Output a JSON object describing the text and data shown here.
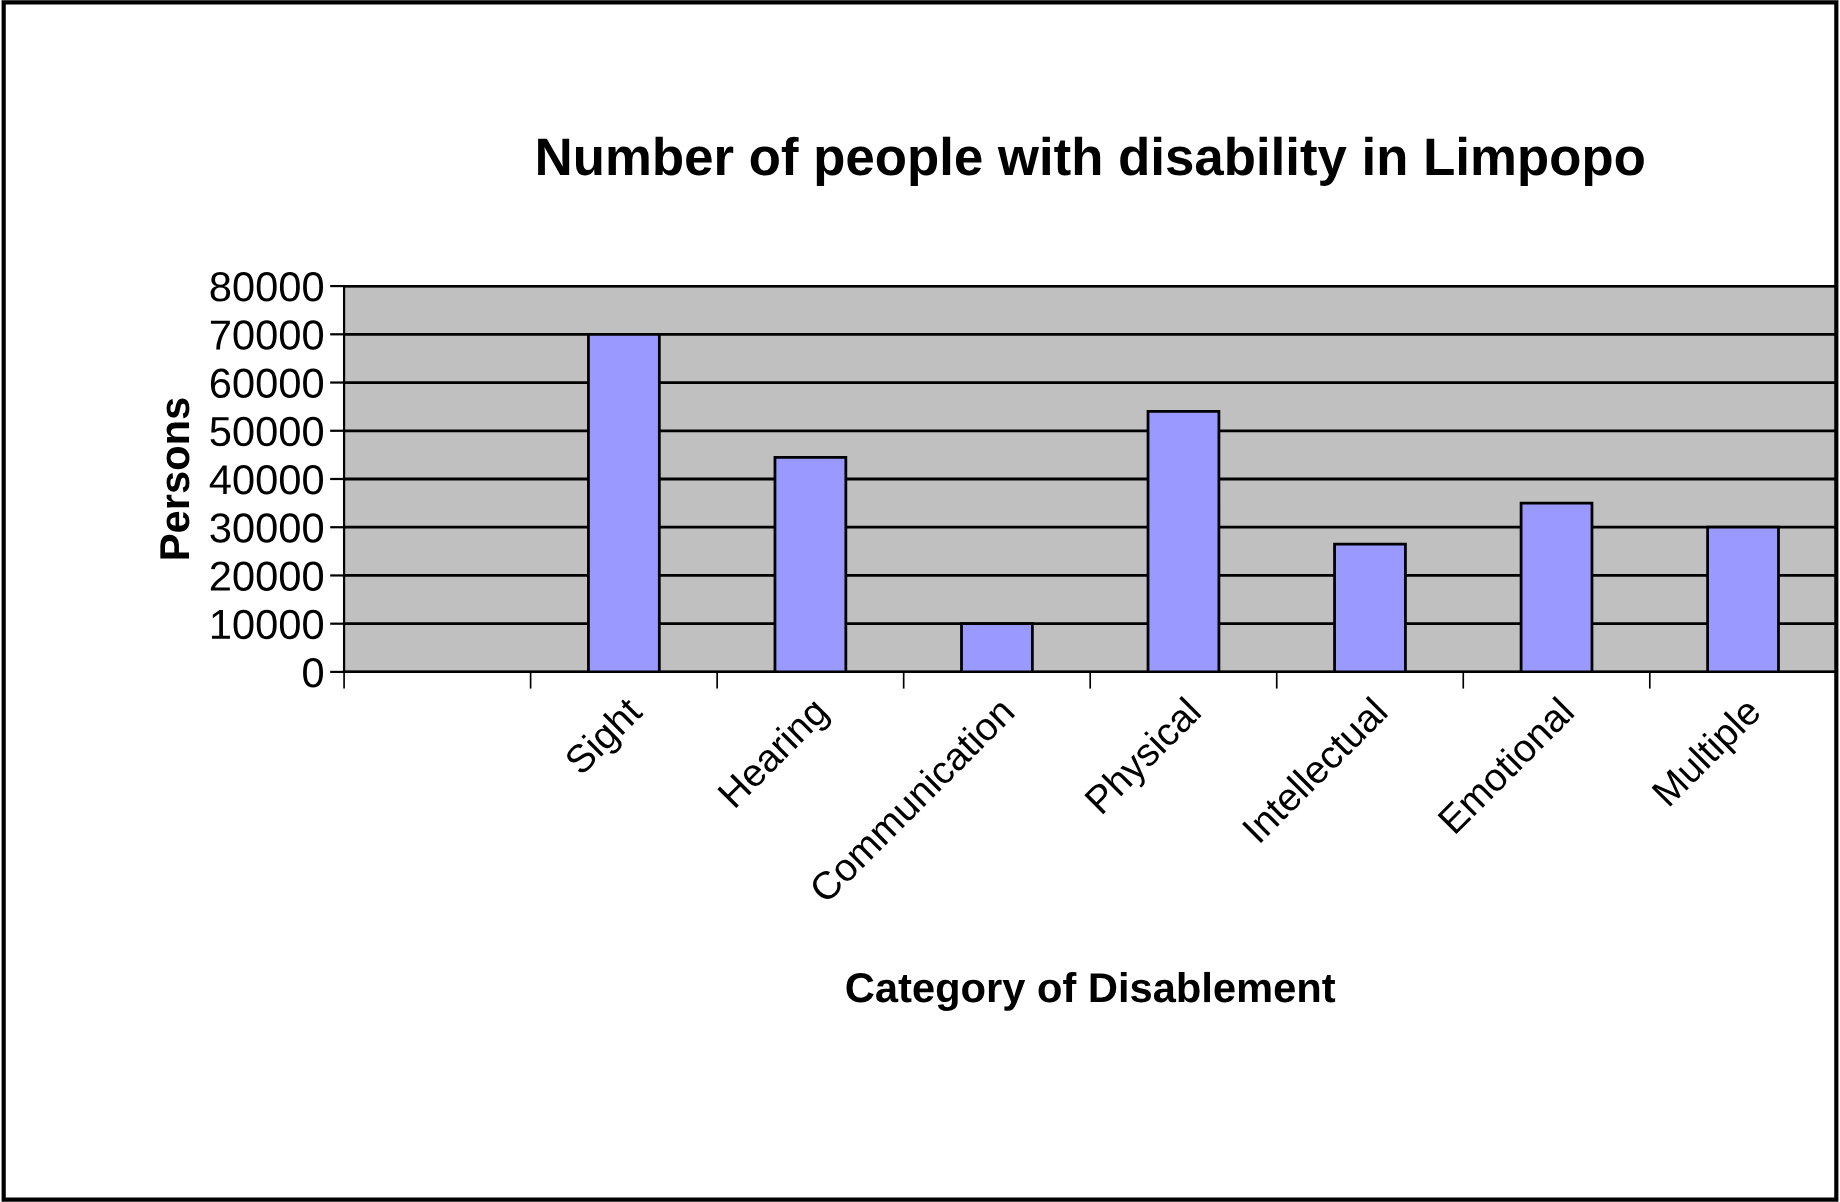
{
  "chart_data": {
    "type": "bar",
    "title": "Number of people with disability in Limpopo",
    "xlabel": "Category of Disablement",
    "ylabel": "Persons",
    "categories": [
      null,
      "Sight",
      "Hearing",
      "Communication",
      "Physical",
      "Intellectual",
      "Emotional",
      "Multiple"
    ],
    "values": [
      null,
      70000,
      44500,
      10000,
      54000,
      26500,
      35000,
      30000
    ],
    "color": "#9999ff",
    "ylim": [
      0,
      80000
    ],
    "yticks": [
      0,
      10000,
      20000,
      30000,
      40000,
      50000,
      60000,
      70000,
      80000
    ],
    "grid": "y",
    "legend": false
  }
}
